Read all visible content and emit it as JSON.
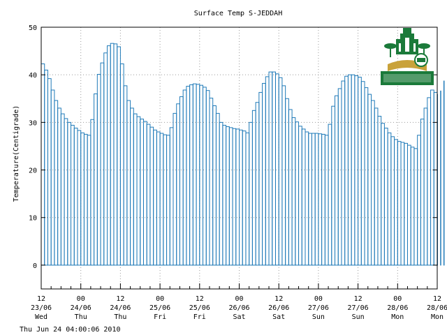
{
  "chart_data": {
    "type": "bar",
    "title": "Surface Temp S-JEDDAH",
    "ylabel": "Temperature(Centigrade)",
    "xlabel": "",
    "ylim": [
      -5,
      50
    ],
    "yticks": [
      0,
      10,
      20,
      30,
      40,
      50
    ],
    "grid": true,
    "x_ticks": [
      {
        "hour": "12",
        "date": "23/06",
        "day": "Wed"
      },
      {
        "hour": "00",
        "date": "24/06",
        "day": "Thu"
      },
      {
        "hour": "12",
        "date": "24/06",
        "day": "Thu"
      },
      {
        "hour": "00",
        "date": "25/06",
        "day": "Fri"
      },
      {
        "hour": "12",
        "date": "25/06",
        "day": "Fri"
      },
      {
        "hour": "00",
        "date": "26/06",
        "day": "Sat"
      },
      {
        "hour": "12",
        "date": "26/06",
        "day": "Sat"
      },
      {
        "hour": "00",
        "date": "27/06",
        "day": "Sun"
      },
      {
        "hour": "12",
        "date": "27/06",
        "day": "Sun"
      },
      {
        "hour": "00",
        "date": "28/06",
        "day": "Mon"
      },
      {
        "hour": "12",
        "date": "28/06",
        "day": "Mon"
      }
    ],
    "values": [
      42.3,
      41.0,
      39.2,
      36.8,
      34.6,
      33.0,
      31.8,
      30.8,
      30.0,
      29.4,
      28.8,
      28.3,
      27.8,
      27.5,
      27.3,
      30.6,
      36.0,
      40.1,
      42.5,
      44.6,
      46.1,
      46.6,
      46.5,
      45.9,
      42.3,
      37.7,
      34.6,
      33.0,
      31.8,
      31.2,
      30.7,
      30.2,
      29.6,
      29.0,
      28.4,
      28.0,
      27.7,
      27.4,
      27.3,
      28.9,
      31.9,
      33.9,
      35.4,
      36.8,
      37.6,
      37.9,
      38.1,
      38.0,
      37.8,
      37.4,
      36.7,
      35.1,
      33.5,
      31.9,
      30.0,
      29.4,
      29.1,
      28.9,
      28.7,
      28.6,
      28.4,
      28.2,
      27.8,
      30.0,
      32.5,
      34.2,
      36.3,
      38.2,
      39.6,
      40.6,
      40.6,
      40.2,
      39.4,
      37.7,
      35.0,
      32.7,
      31.0,
      30.1,
      29.2,
      28.6,
      28.0,
      27.7,
      27.7,
      27.7,
      27.6,
      27.5,
      27.3,
      29.6,
      33.4,
      35.6,
      37.1,
      38.7,
      39.7,
      40.0,
      40.0,
      39.8,
      39.5,
      38.6,
      37.3,
      35.9,
      34.6,
      33.0,
      31.3,
      29.8,
      28.8,
      27.8,
      27.0,
      26.4,
      26.0,
      25.8,
      25.6,
      25.2,
      24.8,
      24.5,
      27.3,
      30.7,
      33.0,
      35.2,
      36.8,
      36.3,
      35.9,
      36.6,
      38.7
    ],
    "step_hours": 1,
    "bar_color": "#1f7ab8",
    "grid_color": "#9a9a9a"
  },
  "footer": {
    "timestamp": "Thu Jun 24 04:00:06 2010"
  },
  "logo": {
    "name": "university-crest-logo",
    "text_ar": "جامعة الملك عبدالعزيز",
    "colors": {
      "green": "#1b7a3a",
      "gold": "#c9a23a"
    }
  }
}
